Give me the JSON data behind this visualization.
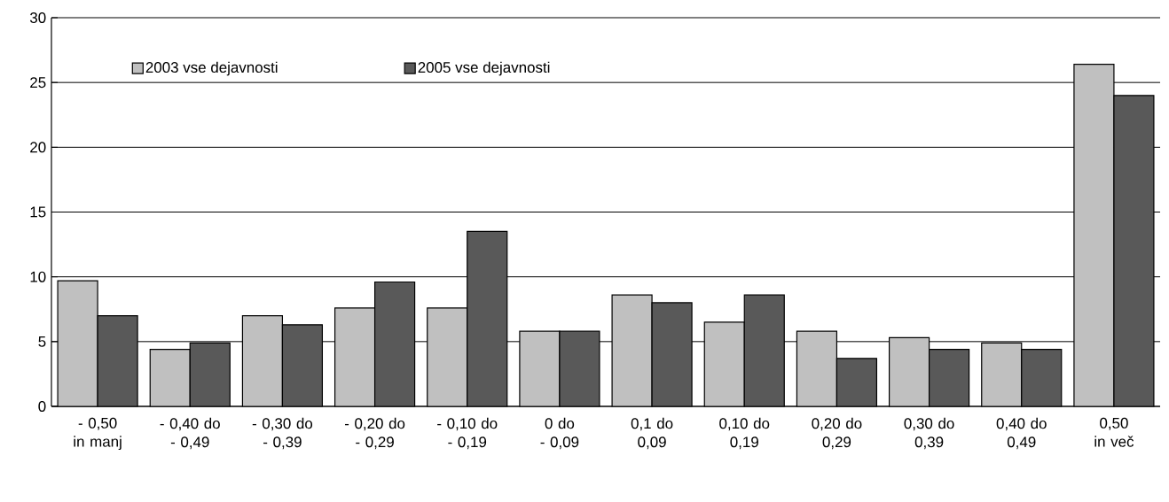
{
  "chart_data": {
    "type": "bar",
    "categories": [
      "- 0,50 in manj",
      "- 0,40 do - 0,49",
      "- 0,30 do - 0,39",
      "- 0,20 do - 0,29",
      "- 0,10 do - 0,19",
      "0 do - 0,09",
      "0,1 do 0,09",
      "0,10 do 0,19",
      "0,20 do 0,29",
      "0,30 do 0,39",
      "0,40 do 0,49",
      "0,50 in več"
    ],
    "series": [
      {
        "name": "2003 vse dejavnosti",
        "color": "#c0c0c0",
        "values": [
          9.7,
          4.4,
          7.0,
          7.6,
          7.6,
          5.8,
          8.6,
          6.5,
          5.8,
          5.3,
          4.9,
          26.4
        ]
      },
      {
        "name": "2005 vse dejavnosti",
        "color": "#595959",
        "values": [
          7.0,
          4.9,
          6.3,
          9.6,
          13.5,
          5.8,
          8.0,
          8.6,
          3.7,
          4.4,
          4.4,
          24.0
        ]
      }
    ],
    "ylim": [
      0,
      30
    ],
    "yticks": [
      0,
      5,
      10,
      15,
      20,
      25,
      30
    ],
    "grid": "y",
    "legend": "top left"
  }
}
